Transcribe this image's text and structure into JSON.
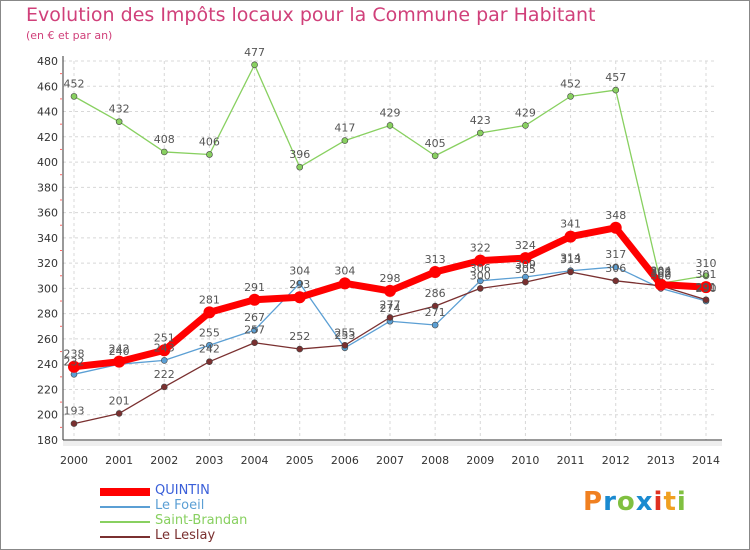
{
  "title": "Evolution des Impôts locaux pour la Commune par Habitant",
  "subtitle": "(en € et par an)",
  "logo": {
    "letters": [
      "P",
      "r",
      "o",
      "x",
      "i",
      "t",
      "i"
    ],
    "colors": [
      "#f08020",
      "#1a8ad0",
      "#80c040",
      "#1a8ad0",
      "#e03020",
      "#f0a020",
      "#80c040"
    ]
  },
  "chart_data": {
    "type": "line",
    "title": "Evolution des Impôts locaux pour la Commune par Habitant",
    "subtitle": "(en € et par an)",
    "x": [
      "2000",
      "2001",
      "2002",
      "2003",
      "2004",
      "2005",
      "2006",
      "2007",
      "2008",
      "2009",
      "2010",
      "2011",
      "2012",
      "2013",
      "2014"
    ],
    "ylim": [
      180,
      480
    ],
    "yticks": [
      180,
      200,
      220,
      240,
      260,
      280,
      300,
      320,
      340,
      360,
      380,
      400,
      420,
      440,
      460,
      480
    ],
    "grid": true,
    "legend_position": "bottom-left",
    "series": [
      {
        "name": "QUINTIN",
        "color": "#ff0000",
        "width": 7,
        "marker": 6,
        "values": [
          238,
          242,
          251,
          281,
          291,
          293,
          304,
          298,
          313,
          322,
          324,
          341,
          348,
          303,
          301
        ],
        "labels": [
          "238",
          "242",
          "251",
          "281",
          "291",
          "293",
          "304",
          "298",
          "313",
          "322",
          "324",
          "341",
          "348",
          "303",
          "301"
        ]
      },
      {
        "name": "Le Foeil",
        "color": "#5b9fd4",
        "width": 1.3,
        "marker": 3,
        "values": [
          232,
          240,
          243,
          255,
          267,
          304,
          253,
          274,
          271,
          306,
          309,
          314,
          317,
          300,
          290
        ],
        "labels": [
          "232",
          "240",
          "243",
          "255",
          "267",
          "304",
          "253",
          "274",
          "271",
          "306",
          "309",
          "314",
          "317",
          "300",
          "290"
        ]
      },
      {
        "name": "Saint-Brandan",
        "color": "#88d060",
        "width": 1.3,
        "marker": 3,
        "values": [
          452,
          432,
          408,
          406,
          477,
          396,
          417,
          429,
          405,
          423,
          429,
          452,
          457,
          304,
          310
        ],
        "labels": [
          "452",
          "432",
          "408",
          "406",
          "477",
          "396",
          "417",
          "429",
          "405",
          "423",
          "429",
          "452",
          "457",
          "304",
          "310"
        ]
      },
      {
        "name": "Le Leslay",
        "color": "#7a3030",
        "width": 1.3,
        "marker": 3,
        "values": [
          193,
          201,
          222,
          242,
          257,
          252,
          255,
          277,
          286,
          300,
          305,
          313,
          306,
          302,
          291
        ],
        "labels": [
          "193",
          "201",
          "222",
          "242",
          "257",
          "252",
          "255",
          "277",
          "286",
          "300",
          "305",
          "313",
          "306",
          "302",
          "291"
        ]
      }
    ]
  }
}
